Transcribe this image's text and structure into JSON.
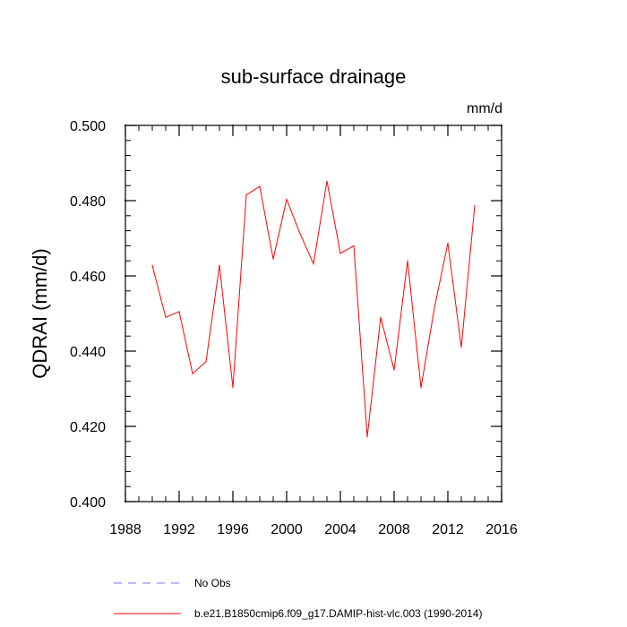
{
  "chart_data": {
    "type": "line",
    "title": "sub-surface drainage",
    "units": "mm/d",
    "ylabel": "QDRAI  (mm/d)",
    "xlabel": "",
    "xlim": [
      1988,
      2016
    ],
    "ylim": [
      0.4,
      0.5
    ],
    "xticks": [
      1988,
      1992,
      1996,
      2000,
      2004,
      2008,
      2012,
      2016
    ],
    "xminor_step": 1,
    "yticks": [
      0.4,
      0.42,
      0.44,
      0.46,
      0.48,
      0.5
    ],
    "yminor_step": 0.004,
    "ytick_labels": [
      "0.400",
      "0.420",
      "0.440",
      "0.460",
      "0.480",
      "0.500"
    ],
    "grid": false,
    "series": [
      {
        "name": "b.e21.B1850cmip6.f09_g17.DAMIP-hist-vlc.003 (1990-2014)",
        "color": "#ff0000",
        "style": "solid",
        "x": [
          1990,
          1991,
          1992,
          1993,
          1994,
          1995,
          1996,
          1997,
          1998,
          1999,
          2000,
          2001,
          2002,
          2003,
          2004,
          2005,
          2006,
          2007,
          2008,
          2009,
          2010,
          2011,
          2012,
          2013,
          2014
        ],
        "y": [
          0.4628,
          0.449,
          0.4505,
          0.434,
          0.4372,
          0.4628,
          0.4303,
          0.4815,
          0.4838,
          0.4645,
          0.4803,
          0.4712,
          0.4632,
          0.4852,
          0.466,
          0.468,
          0.4172,
          0.449,
          0.435,
          0.464,
          0.4303,
          0.4515,
          0.4687,
          0.441,
          0.4787
        ]
      }
    ],
    "legend": [
      {
        "label": "No Obs",
        "color": "#7777ee",
        "style": "dashed"
      },
      {
        "label": "b.e21.B1850cmip6.f09_g17.DAMIP-hist-vlc.003 (1990-2014)",
        "color": "#ff0000",
        "style": "solid"
      }
    ]
  }
}
